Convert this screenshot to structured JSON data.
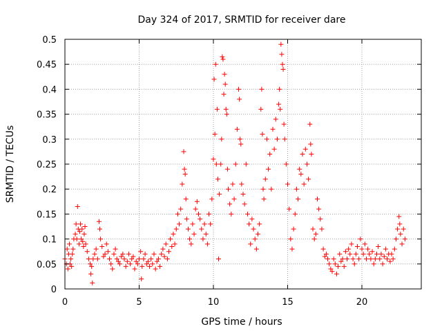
{
  "chart_data": {
    "type": "scatter",
    "title": "Day 324 of 2017, SRMTID for receiver dare",
    "xlabel": "GPS time / hours",
    "ylabel": "SRMTID / TECUs",
    "xlim": [
      0,
      24
    ],
    "ylim": [
      0,
      0.5
    ],
    "xticks": [
      0,
      5,
      10,
      15,
      20
    ],
    "yticks": [
      0,
      0.05,
      0.1,
      0.15,
      0.2,
      0.25,
      0.3,
      0.35,
      0.4,
      0.45,
      0.5
    ],
    "xtick_labels": [
      "0",
      "5",
      "10",
      "15",
      "20"
    ],
    "ytick_labels": [
      "0",
      "0.05",
      "0.1",
      "0.15",
      "0.2",
      "0.25",
      "0.3",
      "0.35",
      "0.4",
      "0.45",
      "0.5"
    ],
    "grid": true,
    "marker": "+",
    "color": "#ff0000",
    "series": [
      {
        "name": "SRMTID",
        "points": [
          [
            0.0,
            0.06
          ],
          [
            0.1,
            0.05
          ],
          [
            0.15,
            0.08
          ],
          [
            0.2,
            0.04
          ],
          [
            0.25,
            0.07
          ],
          [
            0.3,
            0.09
          ],
          [
            0.35,
            0.05
          ],
          [
            0.4,
            0.06
          ],
          [
            0.45,
            0.045
          ],
          [
            0.5,
            0.07
          ],
          [
            0.55,
            0.08
          ],
          [
            0.6,
            0.1
          ],
          [
            0.7,
            0.11
          ],
          [
            0.75,
            0.13
          ],
          [
            0.8,
            0.1
          ],
          [
            0.85,
            0.165
          ],
          [
            0.9,
            0.12
          ],
          [
            0.95,
            0.09
          ],
          [
            1.0,
            0.115
          ],
          [
            1.05,
            0.13
          ],
          [
            1.1,
            0.1
          ],
          [
            1.15,
            0.12
          ],
          [
            1.2,
            0.095
          ],
          [
            1.25,
            0.085
          ],
          [
            1.3,
            0.11
          ],
          [
            1.35,
            0.125
          ],
          [
            1.4,
            0.09
          ],
          [
            1.5,
            0.075
          ],
          [
            1.6,
            0.06
          ],
          [
            1.7,
            0.05
          ],
          [
            1.75,
            0.03
          ],
          [
            1.8,
            0.045
          ],
          [
            1.85,
            0.012
          ],
          [
            1.9,
            0.06
          ],
          [
            2.0,
            0.07
          ],
          [
            2.1,
            0.08
          ],
          [
            2.2,
            0.06
          ],
          [
            2.3,
            0.135
          ],
          [
            2.35,
            0.12
          ],
          [
            2.4,
            0.1
          ],
          [
            2.5,
            0.085
          ],
          [
            2.6,
            0.065
          ],
          [
            2.7,
            0.07
          ],
          [
            2.8,
            0.09
          ],
          [
            2.9,
            0.075
          ],
          [
            3.0,
            0.06
          ],
          [
            3.1,
            0.05
          ],
          [
            3.2,
            0.04
          ],
          [
            3.3,
            0.07
          ],
          [
            3.4,
            0.08
          ],
          [
            3.5,
            0.06
          ],
          [
            3.6,
            0.055
          ],
          [
            3.7,
            0.05
          ],
          [
            3.8,
            0.065
          ],
          [
            3.9,
            0.07
          ],
          [
            4.0,
            0.06
          ],
          [
            4.1,
            0.045
          ],
          [
            4.2,
            0.055
          ],
          [
            4.3,
            0.07
          ],
          [
            4.4,
            0.05
          ],
          [
            4.5,
            0.06
          ],
          [
            4.6,
            0.065
          ],
          [
            4.7,
            0.04
          ],
          [
            4.8,
            0.055
          ],
          [
            4.9,
            0.05
          ],
          [
            5.0,
            0.06
          ],
          [
            5.1,
            0.075
          ],
          [
            5.15,
            0.02
          ],
          [
            5.2,
            0.045
          ],
          [
            5.3,
            0.06
          ],
          [
            5.4,
            0.07
          ],
          [
            5.5,
            0.05
          ],
          [
            5.6,
            0.055
          ],
          [
            5.7,
            0.045
          ],
          [
            5.8,
            0.06
          ],
          [
            5.9,
            0.05
          ],
          [
            6.0,
            0.07
          ],
          [
            6.1,
            0.04
          ],
          [
            6.2,
            0.055
          ],
          [
            6.3,
            0.06
          ],
          [
            6.4,
            0.045
          ],
          [
            6.5,
            0.07
          ],
          [
            6.6,
            0.08
          ],
          [
            6.7,
            0.065
          ],
          [
            6.8,
            0.09
          ],
          [
            6.9,
            0.06
          ],
          [
            7.0,
            0.075
          ],
          [
            7.1,
            0.1
          ],
          [
            7.2,
            0.085
          ],
          [
            7.3,
            0.11
          ],
          [
            7.4,
            0.09
          ],
          [
            7.5,
            0.12
          ],
          [
            7.6,
            0.15
          ],
          [
            7.7,
            0.13
          ],
          [
            7.8,
            0.16
          ],
          [
            7.9,
            0.21
          ],
          [
            8.0,
            0.275
          ],
          [
            8.05,
            0.24
          ],
          [
            8.1,
            0.23
          ],
          [
            8.15,
            0.18
          ],
          [
            8.2,
            0.14
          ],
          [
            8.3,
            0.12
          ],
          [
            8.4,
            0.1
          ],
          [
            8.5,
            0.09
          ],
          [
            8.6,
            0.13
          ],
          [
            8.7,
            0.11
          ],
          [
            8.8,
            0.16
          ],
          [
            8.9,
            0.175
          ],
          [
            9.0,
            0.15
          ],
          [
            9.1,
            0.14
          ],
          [
            9.2,
            0.12
          ],
          [
            9.3,
            0.1
          ],
          [
            9.4,
            0.13
          ],
          [
            9.5,
            0.11
          ],
          [
            9.6,
            0.09
          ],
          [
            9.7,
            0.15
          ],
          [
            9.8,
            0.13
          ],
          [
            9.9,
            0.18
          ],
          [
            10.0,
            0.26
          ],
          [
            10.05,
            0.42
          ],
          [
            10.1,
            0.31
          ],
          [
            10.15,
            0.45
          ],
          [
            10.2,
            0.25
          ],
          [
            10.25,
            0.36
          ],
          [
            10.3,
            0.22
          ],
          [
            10.35,
            0.06
          ],
          [
            10.4,
            0.19
          ],
          [
            10.5,
            0.25
          ],
          [
            10.55,
            0.3
          ],
          [
            10.6,
            0.465
          ],
          [
            10.65,
            0.46
          ],
          [
            10.7,
            0.39
          ],
          [
            10.75,
            0.43
          ],
          [
            10.8,
            0.41
          ],
          [
            10.85,
            0.36
          ],
          [
            10.9,
            0.35
          ],
          [
            10.95,
            0.24
          ],
          [
            11.0,
            0.2
          ],
          [
            11.1,
            0.17
          ],
          [
            11.2,
            0.15
          ],
          [
            11.3,
            0.21
          ],
          [
            11.4,
            0.18
          ],
          [
            11.5,
            0.25
          ],
          [
            11.6,
            0.32
          ],
          [
            11.7,
            0.4
          ],
          [
            11.75,
            0.38
          ],
          [
            11.8,
            0.3
          ],
          [
            11.85,
            0.29
          ],
          [
            11.9,
            0.21
          ],
          [
            12.0,
            0.19
          ],
          [
            12.1,
            0.17
          ],
          [
            12.2,
            0.25
          ],
          [
            12.3,
            0.15
          ],
          [
            12.4,
            0.13
          ],
          [
            12.5,
            0.09
          ],
          [
            12.6,
            0.14
          ],
          [
            12.7,
            0.12
          ],
          [
            12.8,
            0.1
          ],
          [
            12.9,
            0.08
          ],
          [
            13.0,
            0.11
          ],
          [
            13.1,
            0.13
          ],
          [
            13.2,
            0.36
          ],
          [
            13.25,
            0.4
          ],
          [
            13.3,
            0.31
          ],
          [
            13.35,
            0.2
          ],
          [
            13.4,
            0.18
          ],
          [
            13.5,
            0.22
          ],
          [
            13.6,
            0.3
          ],
          [
            13.7,
            0.24
          ],
          [
            13.8,
            0.27
          ],
          [
            13.9,
            0.2
          ],
          [
            14.0,
            0.32
          ],
          [
            14.1,
            0.28
          ],
          [
            14.2,
            0.34
          ],
          [
            14.3,
            0.3
          ],
          [
            14.4,
            0.37
          ],
          [
            14.45,
            0.4
          ],
          [
            14.5,
            0.36
          ],
          [
            14.55,
            0.49
          ],
          [
            14.6,
            0.47
          ],
          [
            14.65,
            0.45
          ],
          [
            14.7,
            0.44
          ],
          [
            14.75,
            0.33
          ],
          [
            14.8,
            0.3
          ],
          [
            14.9,
            0.25
          ],
          [
            15.0,
            0.21
          ],
          [
            15.1,
            0.16
          ],
          [
            15.2,
            0.1
          ],
          [
            15.3,
            0.08
          ],
          [
            15.4,
            0.12
          ],
          [
            15.5,
            0.15
          ],
          [
            15.6,
            0.2
          ],
          [
            15.7,
            0.18
          ],
          [
            15.8,
            0.24
          ],
          [
            15.9,
            0.23
          ],
          [
            16.0,
            0.27
          ],
          [
            16.1,
            0.21
          ],
          [
            16.2,
            0.28
          ],
          [
            16.3,
            0.25
          ],
          [
            16.4,
            0.22
          ],
          [
            16.5,
            0.33
          ],
          [
            16.55,
            0.29
          ],
          [
            16.6,
            0.27
          ],
          [
            16.7,
            0.12
          ],
          [
            16.8,
            0.1
          ],
          [
            16.9,
            0.11
          ],
          [
            17.0,
            0.18
          ],
          [
            17.1,
            0.16
          ],
          [
            17.2,
            0.14
          ],
          [
            17.3,
            0.12
          ],
          [
            17.4,
            0.08
          ],
          [
            17.5,
            0.065
          ],
          [
            17.6,
            0.07
          ],
          [
            17.7,
            0.06
          ],
          [
            17.8,
            0.05
          ],
          [
            17.9,
            0.04
          ],
          [
            18.0,
            0.035
          ],
          [
            18.1,
            0.06
          ],
          [
            18.2,
            0.05
          ],
          [
            18.3,
            0.03
          ],
          [
            18.4,
            0.045
          ],
          [
            18.5,
            0.07
          ],
          [
            18.6,
            0.055
          ],
          [
            18.7,
            0.06
          ],
          [
            18.8,
            0.045
          ],
          [
            18.9,
            0.075
          ],
          [
            19.0,
            0.06
          ],
          [
            19.1,
            0.08
          ],
          [
            19.2,
            0.07
          ],
          [
            19.3,
            0.09
          ],
          [
            19.4,
            0.06
          ],
          [
            19.5,
            0.05
          ],
          [
            19.6,
            0.07
          ],
          [
            19.7,
            0.085
          ],
          [
            19.8,
            0.06
          ],
          [
            19.9,
            0.1
          ],
          [
            20.0,
            0.08
          ],
          [
            20.1,
            0.07
          ],
          [
            20.2,
            0.09
          ],
          [
            20.3,
            0.06
          ],
          [
            20.4,
            0.08
          ],
          [
            20.5,
            0.07
          ],
          [
            20.6,
            0.06
          ],
          [
            20.7,
            0.075
          ],
          [
            20.8,
            0.05
          ],
          [
            20.9,
            0.06
          ],
          [
            21.0,
            0.07
          ],
          [
            21.1,
            0.085
          ],
          [
            21.2,
            0.06
          ],
          [
            21.3,
            0.07
          ],
          [
            21.4,
            0.05
          ],
          [
            21.5,
            0.065
          ],
          [
            21.6,
            0.08
          ],
          [
            21.7,
            0.06
          ],
          [
            21.8,
            0.07
          ],
          [
            21.9,
            0.055
          ],
          [
            22.0,
            0.07
          ],
          [
            22.1,
            0.06
          ],
          [
            22.2,
            0.08
          ],
          [
            22.3,
            0.1
          ],
          [
            22.4,
            0.12
          ],
          [
            22.5,
            0.145
          ],
          [
            22.55,
            0.13
          ],
          [
            22.6,
            0.11
          ],
          [
            22.7,
            0.09
          ],
          [
            22.8,
            0.12
          ],
          [
            22.9,
            0.1
          ]
        ]
      }
    ]
  }
}
